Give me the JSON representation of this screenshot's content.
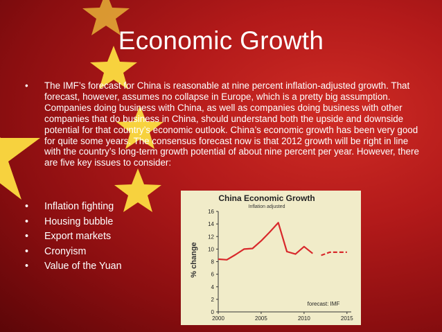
{
  "slide": {
    "title": "Economic Growth",
    "paragraph": "The IMF’s forecast for China is reasonable at nine percent inflation-adjusted growth. That forecast, however, assumes no collapse in Europe, which is a pretty big assumption. Companies doing business with China, as well as companies doing business with other companies that do business in China, should understand both the upside and downside potential for that country’s economic outlook. China’s economic growth has been very good for quite some years. The consensus forecast now is that 2012 growth will be right in line with the country’s long-term growth potential of about nine percent per year. However, there are five key issues to consider:",
    "bullet_symbol": "•",
    "bullets": [
      "Inflation fighting",
      "Housing bubble",
      "Export markets",
      "Cronyism",
      "Value of the Yuan"
    ],
    "colors": {
      "background": "#b31a1a",
      "star": "#f7d23e",
      "text": "#ffffff"
    }
  },
  "chart_data": {
    "type": "line",
    "title": "China Economic Growth",
    "subtitle": "Inflation adjusted",
    "ylabel": "% change",
    "annotation": "forecast: IMF",
    "ylim": [
      0,
      16
    ],
    "yticks": [
      0,
      2,
      4,
      6,
      8,
      10,
      12,
      14,
      16
    ],
    "xlim": [
      2000,
      2015.5
    ],
    "xticks": [
      2000,
      2005,
      2010,
      2015
    ],
    "grid": false,
    "series": [
      {
        "style": "solid",
        "x": [
          2000,
          2001,
          2002,
          2003,
          2004,
          2005,
          2006,
          2007,
          2008,
          2009,
          2010,
          2011
        ],
        "y": [
          8.4,
          8.3,
          9.1,
          10.0,
          10.1,
          11.3,
          12.7,
          14.2,
          9.6,
          9.2,
          10.4,
          9.3
        ]
      },
      {
        "style": "dashed",
        "x": [
          2012,
          2013,
          2014,
          2015
        ],
        "y": [
          9.0,
          9.5,
          9.5,
          9.5
        ]
      }
    ]
  }
}
